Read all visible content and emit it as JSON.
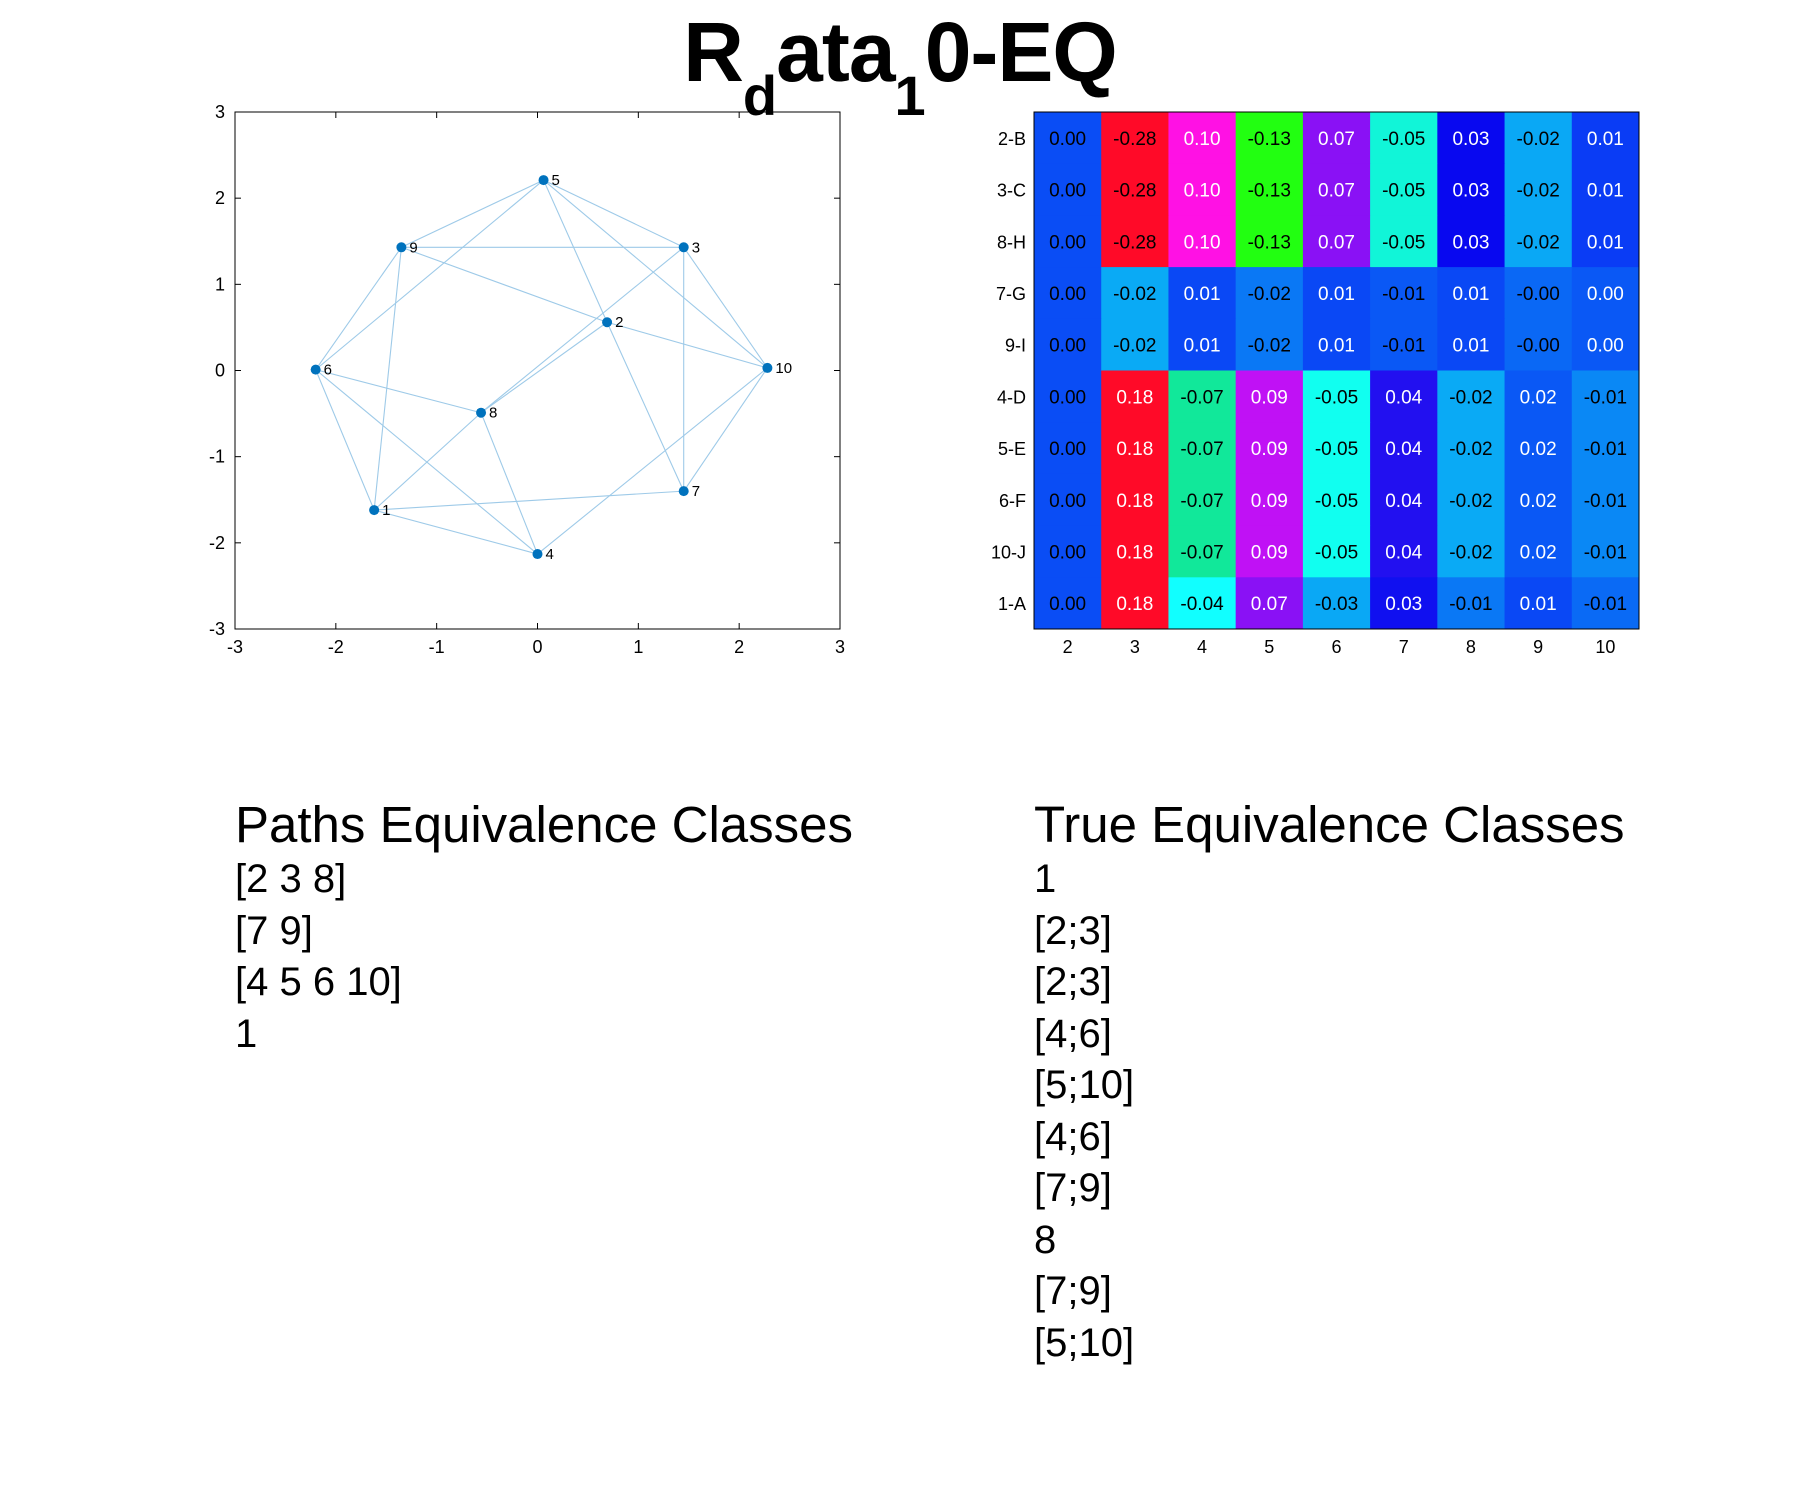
{
  "title": {
    "main": "R",
    "sub1": "d",
    "mid": "ata",
    "sub2": "1",
    "tail": "0-EQ"
  },
  "chart_data": [
    {
      "type": "scatter",
      "title": "",
      "xlabel": "",
      "ylabel": "",
      "xlim": [
        -3,
        3
      ],
      "ylim": [
        -3,
        3
      ],
      "xticks": [
        "-3",
        "-2",
        "-1",
        "0",
        "1",
        "2",
        "3"
      ],
      "yticks": [
        "3",
        "2",
        "1",
        "0",
        "-1",
        "-2",
        "-3"
      ],
      "grid": false,
      "point_color": "#0072BD",
      "edge_color": "#9ecae8",
      "nodes": [
        {
          "label": "1",
          "x": -1.62,
          "y": -1.62
        },
        {
          "label": "2",
          "x": 0.69,
          "y": 0.56
        },
        {
          "label": "3",
          "x": 1.45,
          "y": 1.43
        },
        {
          "label": "4",
          "x": 0.0,
          "y": -2.13
        },
        {
          "label": "5",
          "x": 0.06,
          "y": 2.21
        },
        {
          "label": "6",
          "x": -2.2,
          "y": 0.01
        },
        {
          "label": "7",
          "x": 1.45,
          "y": -1.4
        },
        {
          "label": "8",
          "x": -0.56,
          "y": -0.49
        },
        {
          "label": "9",
          "x": -1.35,
          "y": 1.43
        },
        {
          "label": "10",
          "x": 2.28,
          "y": 0.03
        }
      ],
      "edges": [
        [
          "5",
          "9"
        ],
        [
          "5",
          "6"
        ],
        [
          "5",
          "3"
        ],
        [
          "5",
          "10"
        ],
        [
          "5",
          "2"
        ],
        [
          "9",
          "3"
        ],
        [
          "9",
          "2"
        ],
        [
          "9",
          "6"
        ],
        [
          "9",
          "1"
        ],
        [
          "3",
          "10"
        ],
        [
          "3",
          "7"
        ],
        [
          "3",
          "8"
        ],
        [
          "2",
          "10"
        ],
        [
          "2",
          "7"
        ],
        [
          "2",
          "8"
        ],
        [
          "6",
          "8"
        ],
        [
          "6",
          "1"
        ],
        [
          "6",
          "4"
        ],
        [
          "8",
          "1"
        ],
        [
          "8",
          "4"
        ],
        [
          "1",
          "4"
        ],
        [
          "1",
          "7"
        ],
        [
          "10",
          "4"
        ],
        [
          "10",
          "7"
        ]
      ]
    },
    {
      "type": "heatmap",
      "title": "",
      "row_labels": [
        "2-B",
        "3-C",
        "8-H",
        "7-G",
        "9-I",
        "4-D",
        "5-E",
        "6-F",
        "10-J",
        "1-A"
      ],
      "col_labels": [
        "2",
        "3",
        "4",
        "5",
        "6",
        "7",
        "8",
        "9",
        "10"
      ],
      "values": [
        [
          "0.00",
          "-0.28",
          "0.10",
          "-0.13",
          "0.07",
          "-0.05",
          "0.03",
          "-0.02",
          "0.01"
        ],
        [
          "0.00",
          "-0.28",
          "0.10",
          "-0.13",
          "0.07",
          "-0.05",
          "0.03",
          "-0.02",
          "0.01"
        ],
        [
          "0.00",
          "-0.28",
          "0.10",
          "-0.13",
          "0.07",
          "-0.05",
          "0.03",
          "-0.02",
          "0.01"
        ],
        [
          "0.00",
          "-0.02",
          "0.01",
          "-0.02",
          "0.01",
          "-0.01",
          "0.01",
          "-0.00",
          "0.00"
        ],
        [
          "0.00",
          "-0.02",
          "0.01",
          "-0.02",
          "0.01",
          "-0.01",
          "0.01",
          "-0.00",
          "0.00"
        ],
        [
          "0.00",
          "0.18",
          "-0.07",
          "0.09",
          "-0.05",
          "0.04",
          "-0.02",
          "0.02",
          "-0.01"
        ],
        [
          "0.00",
          "0.18",
          "-0.07",
          "0.09",
          "-0.05",
          "0.04",
          "-0.02",
          "0.02",
          "-0.01"
        ],
        [
          "0.00",
          "0.18",
          "-0.07",
          "0.09",
          "-0.05",
          "0.04",
          "-0.02",
          "0.02",
          "-0.01"
        ],
        [
          "0.00",
          "0.18",
          "-0.07",
          "0.09",
          "-0.05",
          "0.04",
          "-0.02",
          "0.02",
          "-0.01"
        ],
        [
          "0.00",
          "0.18",
          "-0.04",
          "0.07",
          "-0.03",
          "0.03",
          "-0.01",
          "0.01",
          "-0.01"
        ]
      ],
      "cell_colors": [
        [
          "#0a4df5",
          "#ff0a28",
          "#ff11e4",
          "#22ff11",
          "#8a11f5",
          "#11f5d8",
          "#0808f0",
          "#0aa8f5",
          "#0a3cf5"
        ],
        [
          "#0a4df5",
          "#ff0a28",
          "#ff11e4",
          "#22ff11",
          "#8a11f5",
          "#11f5d8",
          "#0808f0",
          "#0aa8f5",
          "#0a3cf5"
        ],
        [
          "#0a4df5",
          "#ff0a28",
          "#ff11e4",
          "#22ff11",
          "#8a11f5",
          "#11f5d8",
          "#0808f0",
          "#0aa8f5",
          "#0a3cf5"
        ],
        [
          "#0a4df5",
          "#0aaaf5",
          "#0a48f5",
          "#0a78f5",
          "#0a48f5",
          "#0a58f5",
          "#0a48f5",
          "#0a68f5",
          "#0a58f5"
        ],
        [
          "#0a4df5",
          "#0aaaf5",
          "#0a48f5",
          "#0a78f5",
          "#0a48f5",
          "#0a58f5",
          "#0a48f5",
          "#0a68f5",
          "#0a58f5"
        ],
        [
          "#0a4df5",
          "#ff0a28",
          "#11e89a",
          "#c011f5",
          "#11fff0",
          "#2210f0",
          "#0aaaf5",
          "#0a58f5",
          "#0a88f5"
        ],
        [
          "#0a4df5",
          "#ff0a28",
          "#11e89a",
          "#c011f5",
          "#11fff0",
          "#2210f0",
          "#0aaaf5",
          "#0a58f5",
          "#0a88f5"
        ],
        [
          "#0a4df5",
          "#ff0a28",
          "#11e89a",
          "#c011f5",
          "#11fff0",
          "#2210f0",
          "#0aaaf5",
          "#0a58f5",
          "#0a88f5"
        ],
        [
          "#0a4df5",
          "#ff0a28",
          "#11e89a",
          "#c011f5",
          "#11fff0",
          "#2210f0",
          "#0aaaf5",
          "#0a58f5",
          "#0a88f5"
        ],
        [
          "#0a4df5",
          "#ff0a28",
          "#11ffff",
          "#8a11f5",
          "#0aa8f5",
          "#1010f0",
          "#0a78f5",
          "#0a48f5",
          "#0a6af5"
        ]
      ],
      "text_colors": [
        [
          "#000",
          "#000",
          "#fff",
          "#000",
          "#fff",
          "#000",
          "#fff",
          "#000",
          "#fff"
        ],
        [
          "#000",
          "#000",
          "#fff",
          "#000",
          "#fff",
          "#000",
          "#fff",
          "#000",
          "#fff"
        ],
        [
          "#000",
          "#000",
          "#fff",
          "#000",
          "#fff",
          "#000",
          "#fff",
          "#000",
          "#fff"
        ],
        [
          "#000",
          "#000",
          "#fff",
          "#000",
          "#fff",
          "#000",
          "#fff",
          "#000",
          "#fff"
        ],
        [
          "#000",
          "#000",
          "#fff",
          "#000",
          "#fff",
          "#000",
          "#fff",
          "#000",
          "#fff"
        ],
        [
          "#000",
          "#fff",
          "#000",
          "#fff",
          "#000",
          "#fff",
          "#000",
          "#fff",
          "#000"
        ],
        [
          "#000",
          "#fff",
          "#000",
          "#fff",
          "#000",
          "#fff",
          "#000",
          "#fff",
          "#000"
        ],
        [
          "#000",
          "#fff",
          "#000",
          "#fff",
          "#000",
          "#fff",
          "#000",
          "#fff",
          "#000"
        ],
        [
          "#000",
          "#fff",
          "#000",
          "#fff",
          "#000",
          "#fff",
          "#000",
          "#fff",
          "#000"
        ],
        [
          "#000",
          "#fff",
          "#000",
          "#fff",
          "#000",
          "#fff",
          "#000",
          "#fff",
          "#000"
        ]
      ]
    }
  ],
  "paths_classes": {
    "heading": "Paths Equivalence Classes",
    "items": [
      "[2 3 8]",
      "[7 9]",
      "[4 5 6 10]",
      "1"
    ]
  },
  "true_classes": {
    "heading": "True Equivalence Classes",
    "items": [
      "1",
      "[2;3]",
      "[2;3]",
      "[4;6]",
      "[5;10]",
      "[4;6]",
      "[7;9]",
      "8",
      "[7;9]",
      "[5;10]"
    ]
  }
}
